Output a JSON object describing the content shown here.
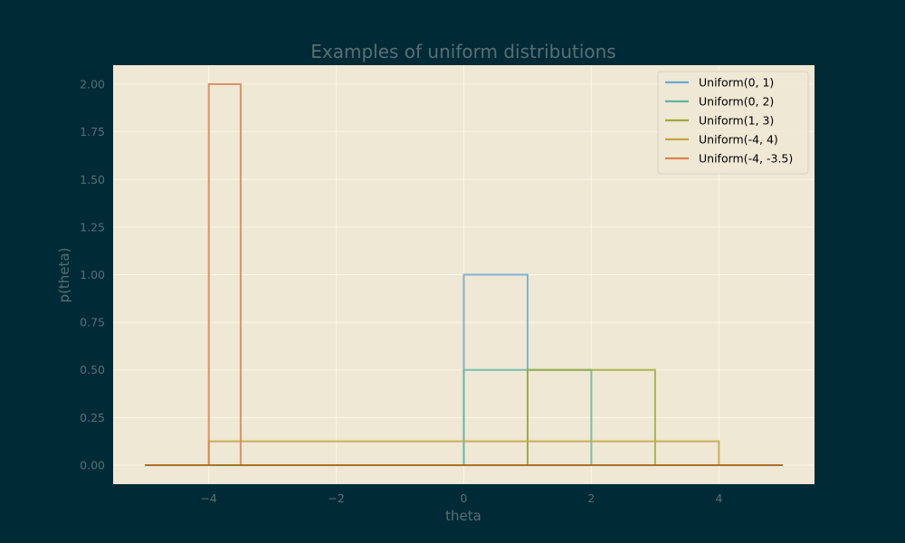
{
  "chart_data": {
    "type": "line",
    "title": "Examples of uniform distributions",
    "xlabel": "theta",
    "ylabel": "p(theta)",
    "xlim": [
      -5.5,
      5.5
    ],
    "ylim": [
      -0.1,
      2.1
    ],
    "x_ticks": [
      -4,
      -2,
      0,
      2,
      4
    ],
    "x_tick_labels": [
      "−4",
      "−2",
      "0",
      "2",
      "4"
    ],
    "y_ticks": [
      0,
      0.25,
      0.5,
      0.75,
      1.0,
      1.25,
      1.5,
      1.75,
      2.0
    ],
    "y_tick_labels": [
      "0.00",
      "0.25",
      "0.50",
      "0.75",
      "1.00",
      "1.25",
      "1.50",
      "1.75",
      "2.00"
    ],
    "grid": true,
    "legend_position": "top-right",
    "domain": [
      -5,
      5
    ],
    "series": [
      {
        "name": "Uniform(0, 1)",
        "a": 0,
        "b": 1,
        "density": 1.0,
        "color": "#6ea8d0"
      },
      {
        "name": "Uniform(0, 2)",
        "a": 0,
        "b": 2,
        "density": 0.5,
        "color": "#63b4a4"
      },
      {
        "name": "Uniform(1, 3)",
        "a": 1,
        "b": 3,
        "density": 0.5,
        "color": "#9eaa3a"
      },
      {
        "name": "Uniform(-4, 4)",
        "a": -4,
        "b": 4,
        "density": 0.125,
        "color": "#c3a63e"
      },
      {
        "name": "Uniform(-4, -3.5)",
        "a": -4,
        "b": -3.5,
        "density": 2.0,
        "color": "#d9834e"
      }
    ],
    "colors": {
      "page_background": "#002b36",
      "plot_background": "#eee8d5",
      "grid": "#fdf6e3",
      "text": "#586e75",
      "baseline": "#a26a22"
    }
  }
}
